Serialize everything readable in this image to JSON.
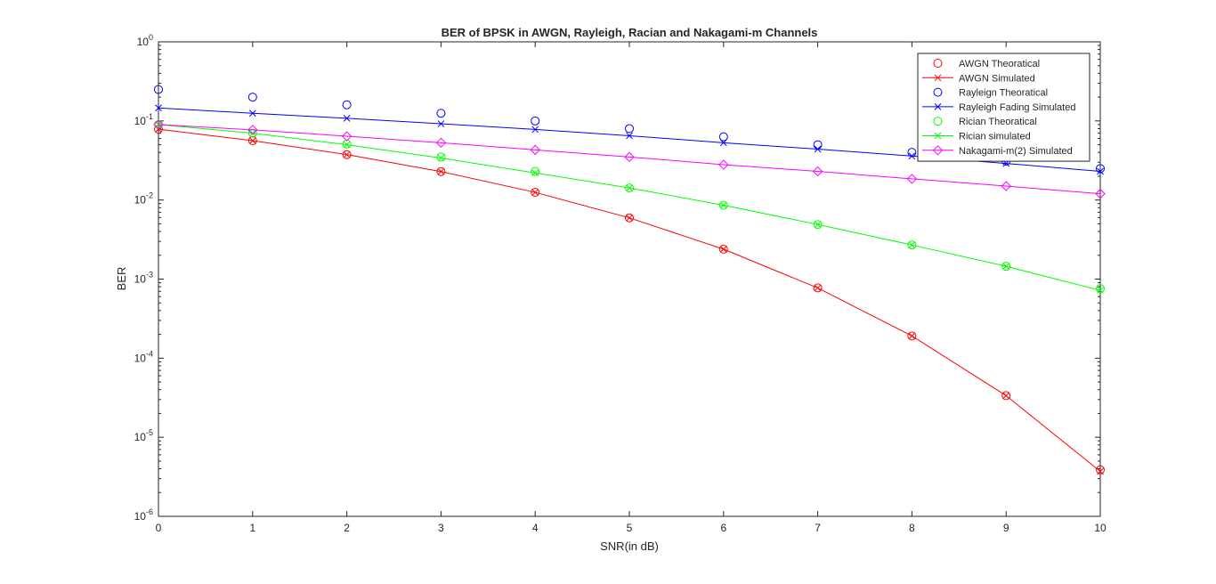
{
  "chart_data": {
    "type": "line",
    "title": "BER of BPSK in AWGN, Rayleigh, Racian and Nakagami-m Channels",
    "xlabel": "SNR(in dB)",
    "ylabel": "BER",
    "xlim": [
      0,
      10
    ],
    "ylim": [
      1e-06,
      1
    ],
    "yscale": "log",
    "grid": false,
    "legend_position": "top-right",
    "x": [
      0,
      1,
      2,
      3,
      4,
      5,
      6,
      7,
      8,
      9,
      10
    ],
    "xticks": [
      "0",
      "1",
      "2",
      "3",
      "4",
      "5",
      "6",
      "7",
      "8",
      "9",
      "10"
    ],
    "yticks": [
      {
        "base": "10",
        "exp": "0",
        "value": 1
      },
      {
        "base": "10",
        "exp": "-1",
        "value": 0.1
      },
      {
        "base": "10",
        "exp": "-2",
        "value": 0.01
      },
      {
        "base": "10",
        "exp": "-3",
        "value": 0.001
      },
      {
        "base": "10",
        "exp": "-4",
        "value": 0.0001
      },
      {
        "base": "10",
        "exp": "-5",
        "value": 1e-05
      },
      {
        "base": "10",
        "exp": "-6",
        "value": 1e-06
      }
    ],
    "series": [
      {
        "name": "AWGN Theoratical",
        "color": "#ff0000",
        "marker": "circle",
        "line": false,
        "values": [
          0.0786,
          0.0563,
          0.0375,
          0.0229,
          0.0125,
          0.00595,
          0.00239,
          0.000773,
          0.000191,
          3.36e-05,
          3.87e-06
        ]
      },
      {
        "name": "AWGN Simulated",
        "color": "#ff0000",
        "marker": "x",
        "line": true,
        "values": [
          0.0786,
          0.0563,
          0.0375,
          0.0229,
          0.0125,
          0.00595,
          0.00239,
          0.000773,
          0.000191,
          3.36e-05,
          3.7e-06
        ]
      },
      {
        "name": "Rayleign Theoratical",
        "color": "#0000ff",
        "marker": "circle",
        "line": false,
        "values": [
          0.25,
          0.2,
          0.16,
          0.125,
          0.1,
          0.08,
          0.063,
          0.05,
          0.04,
          0.031,
          0.025
        ]
      },
      {
        "name": "Rayleigh Fading Simulated",
        "color": "#0000ff",
        "marker": "x",
        "line": true,
        "values": [
          0.146,
          0.125,
          0.108,
          0.092,
          0.078,
          0.065,
          0.053,
          0.044,
          0.036,
          0.029,
          0.023
        ]
      },
      {
        "name": "Rician Theoratical",
        "color": "#00ff00",
        "marker": "circle",
        "line": false,
        "values": [
          0.09,
          0.07,
          0.051,
          0.035,
          0.023,
          0.0142,
          0.0086,
          0.0049,
          0.0027,
          0.00145,
          0.00076
        ]
      },
      {
        "name": "Rician simulated",
        "color": "#00ff00",
        "marker": "x",
        "line": true,
        "values": [
          0.09,
          0.07,
          0.05,
          0.034,
          0.022,
          0.0142,
          0.0086,
          0.0049,
          0.0027,
          0.00145,
          0.00072
        ]
      },
      {
        "name": "Nakagami-m(2) Simulated",
        "color": "#ff00ff",
        "marker": "diamond",
        "line": true,
        "values": [
          0.09,
          0.077,
          0.064,
          0.053,
          0.043,
          0.035,
          0.028,
          0.023,
          0.0185,
          0.015,
          0.012
        ]
      }
    ]
  }
}
